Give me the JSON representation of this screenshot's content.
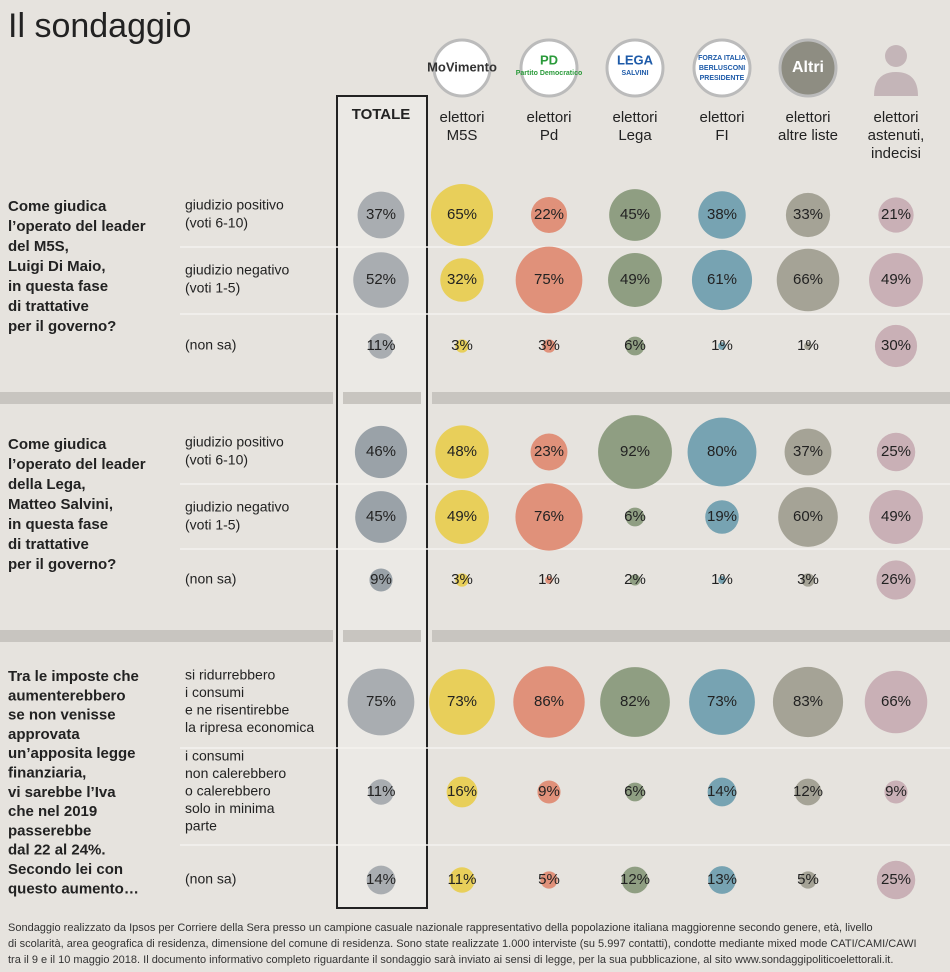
{
  "title": "Il sondaggio",
  "columns": [
    {
      "header": [
        "TOTALE"
      ]
    },
    {
      "logo": [
        "MoVimento"
      ],
      "header": [
        "elettori",
        "M5S"
      ]
    },
    {
      "logo": [
        "PD",
        "Partito Democratico"
      ],
      "header": [
        "elettori",
        "Pd"
      ]
    },
    {
      "logo": [
        "LEGA",
        "SALVINI"
      ],
      "header": [
        "elettori",
        "Lega"
      ]
    },
    {
      "logo": [
        "FORZA ITALIA",
        "BERLUSCONI",
        "PRESIDENTE"
      ],
      "header": [
        "elettori",
        "FI"
      ]
    },
    {
      "logo": [
        "Altri"
      ],
      "header": [
        "elettori",
        "altre liste"
      ]
    },
    {
      "header": [
        "elettori",
        "astenuti,",
        "indecisi"
      ]
    }
  ],
  "sections": [
    {
      "question": [
        "Come giudica",
        "l’operato del leader",
        "del M5S,",
        "Luigi Di Maio,",
        "in questa fase",
        "di trattative",
        "per il governo?"
      ],
      "rows": [
        {
          "label": [
            "giudizio positivo",
            "(voti 6-10)"
          ],
          "cells": [
            {
              "value": 37,
              "label": "37%"
            },
            {
              "value": 65,
              "label": "65%"
            },
            {
              "value": 22,
              "label": "22%"
            },
            {
              "value": 45,
              "label": "45%"
            },
            {
              "value": 38,
              "label": "38%"
            },
            {
              "value": 33,
              "label": "33%"
            },
            {
              "value": 21,
              "label": "21%"
            }
          ]
        },
        {
          "label": [
            "giudizio negativo",
            "(voti 1-5)"
          ],
          "cells": [
            {
              "value": 52,
              "label": "52%"
            },
            {
              "value": 32,
              "label": "32%"
            },
            {
              "value": 75,
              "label": "75%"
            },
            {
              "value": 49,
              "label": "49%"
            },
            {
              "value": 61,
              "label": "61%"
            },
            {
              "value": 66,
              "label": "66%"
            },
            {
              "value": 49,
              "label": "49%"
            }
          ]
        },
        {
          "label": [
            "(non sa)"
          ],
          "cells": [
            {
              "value": 11,
              "label": "11%"
            },
            {
              "value": 3,
              "label": "3%"
            },
            {
              "value": 3,
              "label": "3%"
            },
            {
              "value": 6,
              "label": "6%"
            },
            {
              "value": 1,
              "label": "1%"
            },
            {
              "value": 1,
              "label": "1%"
            },
            {
              "value": 30,
              "label": "30%"
            }
          ]
        }
      ]
    },
    {
      "question": [
        "Come giudica",
        "l’operato del leader",
        "della Lega,",
        "Matteo Salvini,",
        "in questa fase",
        "di trattative",
        "per il governo?"
      ],
      "rows": [
        {
          "label": [
            "giudizio positivo",
            "(voti 6-10)"
          ],
          "cells": [
            {
              "value": 46,
              "label": "46%"
            },
            {
              "value": 48,
              "label": "48%"
            },
            {
              "value": 23,
              "label": "23%"
            },
            {
              "value": 92,
              "label": "92%"
            },
            {
              "value": 80,
              "label": "80%"
            },
            {
              "value": 37,
              "label": "37%"
            },
            {
              "value": 25,
              "label": "25%"
            }
          ]
        },
        {
          "label": [
            "giudizio negativo",
            "(voti 1-5)"
          ],
          "cells": [
            {
              "value": 45,
              "label": "45%"
            },
            {
              "value": 49,
              "label": "49%"
            },
            {
              "value": 76,
              "label": "76%"
            },
            {
              "value": 6,
              "label": "6%"
            },
            {
              "value": 19,
              "label": "19%"
            },
            {
              "value": 60,
              "label": "60%"
            },
            {
              "value": 49,
              "label": "49%"
            }
          ]
        },
        {
          "label": [
            "(non sa)"
          ],
          "cells": [
            {
              "value": 9,
              "label": "9%"
            },
            {
              "value": 3,
              "label": "3%"
            },
            {
              "value": 1,
              "label": "1%"
            },
            {
              "value": 2,
              "label": "2%"
            },
            {
              "value": 1,
              "label": "1%"
            },
            {
              "value": 3,
              "label": "3%"
            },
            {
              "value": 26,
              "label": "26%"
            }
          ]
        }
      ]
    },
    {
      "question": [
        "Tra le imposte che",
        "aumenterebbero",
        "se non venisse",
        "approvata",
        "un’apposita legge",
        "finanziaria,",
        "vi sarebbe l’Iva",
        "che nel 2019",
        "passerebbe",
        "dal 22 al 24%.",
        "Secondo lei con",
        "questo aumento…"
      ],
      "rows": [
        {
          "label": [
            "si ridurrebbero",
            "i consumi",
            "e ne risentirebbe",
            "la ripresa economica"
          ],
          "cells": [
            {
              "value": 75,
              "label": "75%"
            },
            {
              "value": 73,
              "label": "73%"
            },
            {
              "value": 86,
              "label": "86%"
            },
            {
              "value": 82,
              "label": "82%"
            },
            {
              "value": 73,
              "label": "73%"
            },
            {
              "value": 83,
              "label": "83%"
            },
            {
              "value": 66,
              "label": "66%"
            }
          ]
        },
        {
          "label": [
            "i consumi",
            "non calerebbero",
            "o calerebbero",
            "solo in minima",
            "parte"
          ],
          "cells": [
            {
              "value": 11,
              "label": "11%"
            },
            {
              "value": 16,
              "label": "16%"
            },
            {
              "value": 9,
              "label": "9%"
            },
            {
              "value": 6,
              "label": "6%"
            },
            {
              "value": 14,
              "label": "14%"
            },
            {
              "value": 12,
              "label": "12%"
            },
            {
              "value": 9,
              "label": "9%"
            }
          ]
        },
        {
          "label": [
            "(non sa)"
          ],
          "cells": [
            {
              "value": 14,
              "label": "14%"
            },
            {
              "value": 11,
              "label": "11%"
            },
            {
              "value": 5,
              "label": "5%"
            },
            {
              "value": 12,
              "label": "12%"
            },
            {
              "value": 13,
              "label": "13%"
            },
            {
              "value": 5,
              "label": "5%"
            },
            {
              "value": 25,
              "label": "25%"
            }
          ]
        }
      ]
    }
  ],
  "footer": [
    "Sondaggio realizzato da Ipsos per Corriere della Sera presso un campione casuale nazionale rappresentativo della popolazione italiana maggiorenne secondo genere, età, livello",
    "di scolarità, area geografica di residenza, dimensione del comune di residenza. Sono state realizzate 1.000 interviste (su 5.997 contatti), condotte mediante mixed mode CATI/CAMI/CAWI",
    "tra il 9 e il 10 maggio 2018. Il documento informativo completo riguardante il sondaggio sarà inviato ai sensi di legge, per la sua pubblicazione, al sito www.sondaggipoliticoelettorali.it."
  ]
}
